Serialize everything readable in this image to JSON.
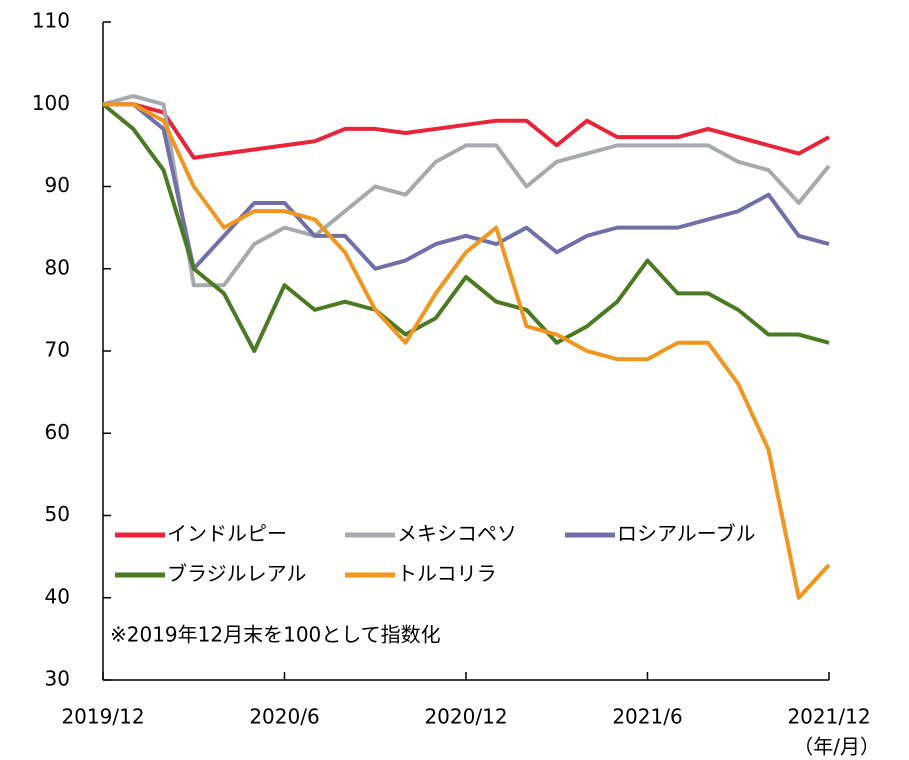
{
  "chart_data": {
    "type": "line",
    "categories": [
      "2019/12",
      null,
      null,
      null,
      null,
      null,
      "2020/6",
      null,
      null,
      null,
      null,
      null,
      "2020/12",
      null,
      null,
      null,
      null,
      null,
      "2021/6",
      null,
      null,
      null,
      null,
      null,
      "2021/12"
    ],
    "x_unit": "（年/月）",
    "annotation": "※2019年12月末を100として指数化",
    "ylim": [
      30,
      110
    ],
    "yticks": [
      30,
      40,
      50,
      60,
      70,
      80,
      90,
      100,
      110
    ],
    "legend": "lower left",
    "grid": false,
    "series": [
      {
        "name": "インドルピー",
        "color": "#e8243a",
        "values": [
          100,
          100,
          99,
          93.5,
          94,
          94.5,
          95,
          95.5,
          97,
          97,
          96.5,
          97,
          97.5,
          98,
          98,
          95,
          98,
          96,
          96,
          96,
          97,
          96,
          95,
          94,
          96
        ]
      },
      {
        "name": "メキシコペソ",
        "color": "#a6a9ad",
        "values": [
          100,
          101,
          100,
          78,
          78,
          83,
          85,
          84,
          87,
          90,
          89,
          93,
          95,
          95,
          90,
          93,
          94,
          95,
          95,
          95,
          95,
          93,
          92,
          88,
          92.5
        ]
      },
      {
        "name": "ロシアルーブル",
        "color": "#7070a8",
        "values": [
          100,
          100,
          97,
          80,
          84,
          88,
          88,
          84,
          84,
          80,
          81,
          83,
          84,
          83,
          85,
          82,
          84,
          85,
          85,
          85,
          86,
          87,
          89,
          84,
          83
        ]
      },
      {
        "name": "ブラジルレアル",
        "color": "#4a7a22",
        "values": [
          100,
          97,
          92,
          80,
          77,
          70,
          78,
          75,
          76,
          75,
          72,
          74,
          79,
          76,
          75,
          71,
          73,
          76,
          81,
          77,
          77,
          75,
          72,
          72,
          71
        ]
      },
      {
        "name": "トルコリラ",
        "color": "#f0961e",
        "values": [
          100,
          100,
          98,
          90,
          85,
          87,
          87,
          86,
          82,
          75,
          71,
          77,
          82,
          85,
          73,
          72,
          70,
          69,
          69,
          71,
          71,
          66,
          58,
          40,
          44
        ]
      }
    ]
  }
}
